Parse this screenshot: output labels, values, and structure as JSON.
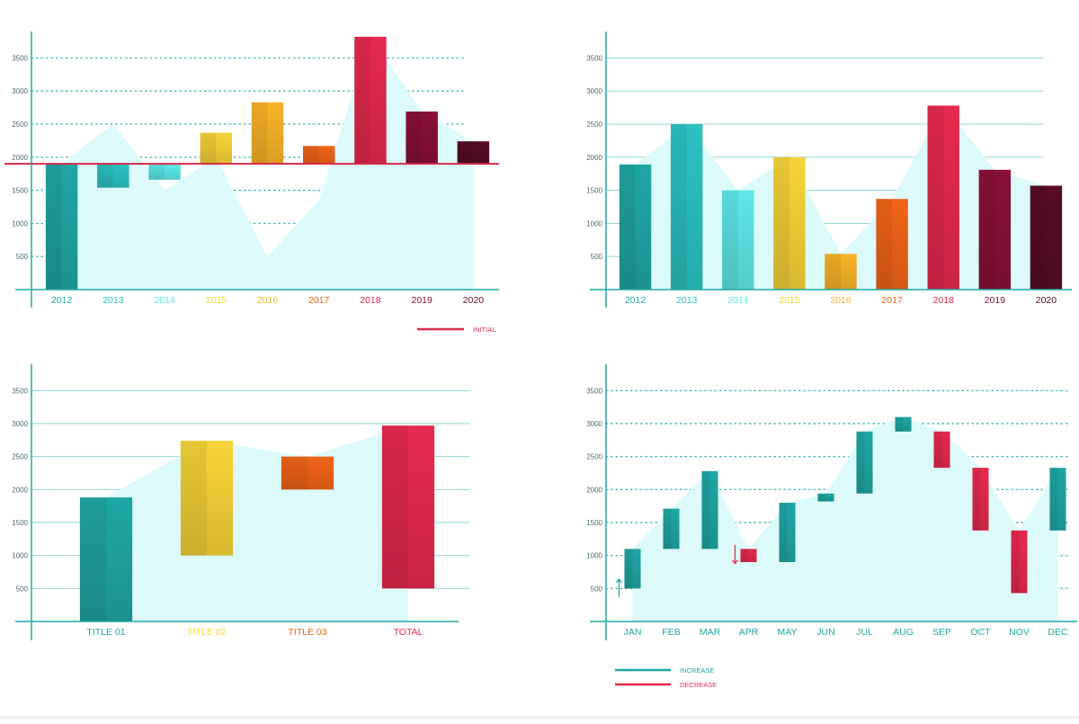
{
  "chart_data": [
    {
      "type": "bar",
      "subtype": "waterfall",
      "categories": [
        "2012",
        "2013",
        "2014",
        "2015",
        "2016",
        "2017",
        "2018",
        "2019",
        "2020"
      ],
      "bar_ranges": [
        [
          0,
          1900
        ],
        [
          1540,
          1900
        ],
        [
          1660,
          1900
        ],
        [
          1900,
          2370
        ],
        [
          1900,
          2830
        ],
        [
          1900,
          2170
        ],
        [
          1900,
          3820
        ],
        [
          1900,
          2690
        ],
        [
          1900,
          2240
        ]
      ],
      "category_colors": [
        "#1fa6a4",
        "#2cc2c2",
        "#5ee8e8",
        "#f6d338",
        "#f8b428",
        "#f06418",
        "#e52a4e",
        "#8a1038",
        "#560c24"
      ],
      "background_area": [
        1900,
        2500,
        1500,
        2000,
        500,
        1350,
        3820,
        2690,
        2240
      ],
      "reference_line": {
        "value": 1900,
        "color": "#d42a4a"
      },
      "y_ticks": [
        "500",
        "1000",
        "1500",
        "2000",
        "2500",
        "3000",
        "3500"
      ],
      "ylim": [
        0,
        3900
      ],
      "grid": "dotted",
      "legend": [
        {
          "label": "INITIAL",
          "color": "#d42a4a"
        }
      ],
      "legend_position": "bottom-right",
      "title": "",
      "xlabel": "",
      "ylabel": ""
    },
    {
      "type": "bar",
      "categories": [
        "2012",
        "2013",
        "2014",
        "2015",
        "2016",
        "2017",
        "2018",
        "2019",
        "2020"
      ],
      "values": [
        1890,
        2500,
        1500,
        2000,
        540,
        1370,
        2780,
        1810,
        1570
      ],
      "category_colors": [
        "#1fa6a4",
        "#2cc2c2",
        "#5ee8e8",
        "#f6d338",
        "#f8b428",
        "#f06418",
        "#e52a4e",
        "#8a1038",
        "#560c24"
      ],
      "background_area": [
        1890,
        2500,
        1500,
        2000,
        540,
        1370,
        2780,
        1810,
        1570
      ],
      "y_ticks": [
        "500",
        "1000",
        "1500",
        "2000",
        "2500",
        "3000",
        "3500"
      ],
      "ylim": [
        0,
        3900
      ],
      "grid": "solid",
      "title": "",
      "xlabel": "",
      "ylabel": ""
    },
    {
      "type": "bar",
      "subtype": "waterfall",
      "categories": [
        "TITLE 01",
        "TITLE 02",
        "TITLE 03",
        "TOTAL"
      ],
      "bar_ranges": [
        [
          0,
          1880
        ],
        [
          1000,
          2740
        ],
        [
          2000,
          2500
        ],
        [
          500,
          2970
        ]
      ],
      "category_colors": [
        "#1fa6a4",
        "#f6d338",
        "#f06418",
        "#e52a4e"
      ],
      "y_ticks": [
        "500",
        "1000",
        "1500",
        "2000",
        "2500",
        "3000",
        "3500"
      ],
      "ylim": [
        0,
        3900
      ],
      "grid": "solid",
      "title": "",
      "xlabel": "",
      "ylabel": ""
    },
    {
      "type": "bar",
      "subtype": "waterfall",
      "categories": [
        "JAN",
        "FEB",
        "MAR",
        "APR",
        "MAY",
        "JUN",
        "JUL",
        "AUG",
        "SEP",
        "OCT",
        "NOV",
        "DEC"
      ],
      "bar_ranges": [
        [
          500,
          1100
        ],
        [
          1100,
          1710
        ],
        [
          1100,
          2280
        ],
        [
          900,
          1100
        ],
        [
          900,
          1800
        ],
        [
          1820,
          1940
        ],
        [
          1940,
          2880
        ],
        [
          2880,
          3100
        ],
        [
          2330,
          2880
        ],
        [
          1380,
          2330
        ],
        [
          430,
          1380
        ],
        [
          1380,
          2330
        ]
      ],
      "direction": [
        "increase",
        "increase",
        "increase",
        "decrease",
        "increase",
        "increase",
        "increase",
        "increase",
        "decrease",
        "decrease",
        "decrease",
        "increase"
      ],
      "colors": {
        "increase": "#1fa6a4",
        "decrease": "#e52a4e"
      },
      "y_ticks": [
        "500",
        "1000",
        "1500",
        "2000",
        "2500",
        "3000",
        "3500"
      ],
      "ylim": [
        0,
        3900
      ],
      "grid": "dotted",
      "legend": [
        {
          "label": "INCREASE",
          "color": "#1fa6a4"
        },
        {
          "label": "DECREASE",
          "color": "#e52a4e"
        }
      ],
      "legend_position": "bottom-left",
      "title": "",
      "xlabel": "",
      "ylabel": ""
    }
  ]
}
